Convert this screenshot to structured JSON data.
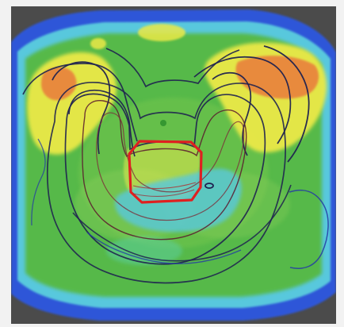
{
  "image": {
    "kind": "dose-distribution-overlay",
    "background_color": "#4b4b4b",
    "colors": {
      "outer_blue": "#2d56d8",
      "cyan": "#58c8dd",
      "teal": "#5ccf9d",
      "green": "#56b94a",
      "light_green": "#85cf52",
      "yellow": "#ebe947",
      "orange": "#e88a3d",
      "dark_contour": "#1f2250",
      "red_roi": "#df2020"
    }
  }
}
